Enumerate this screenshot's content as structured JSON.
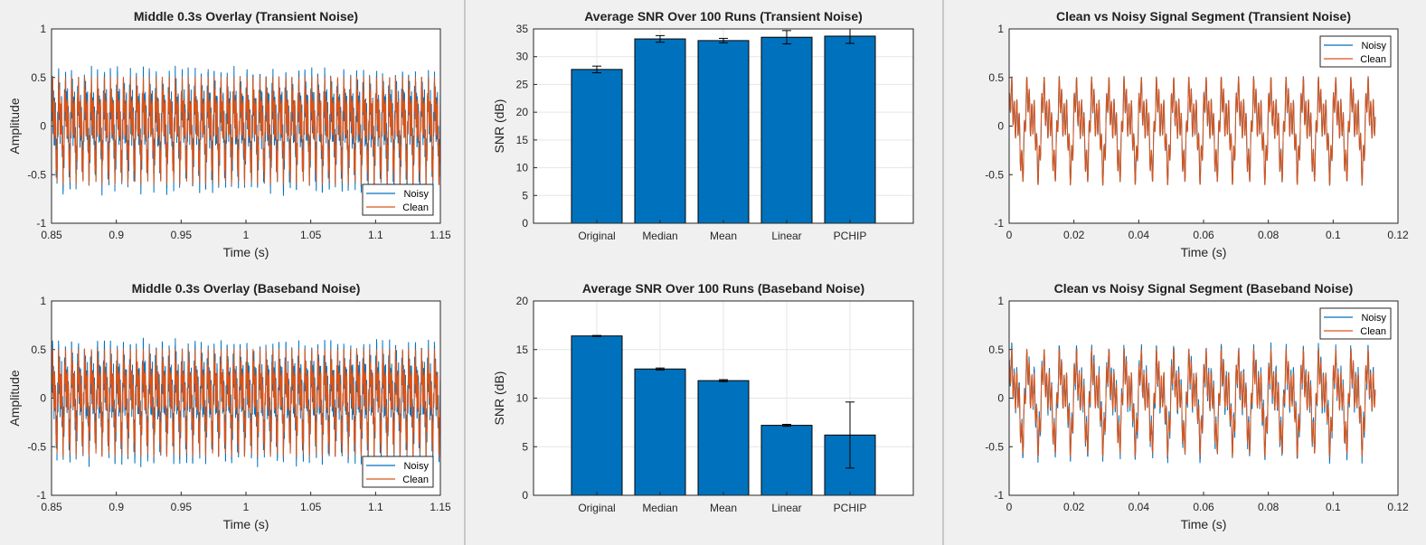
{
  "colors": {
    "noisy": "#0072BD",
    "clean": "#D95319",
    "bar": "#0072BD",
    "grid": "#e6e6e6",
    "axis": "#262626",
    "panel_bg": "#f0f0f0"
  },
  "chart_data": [
    {
      "type": "line",
      "id": "ov-t",
      "title": "Middle 0.3s Overlay (Transient Noise)",
      "xlabel": "Time (s)",
      "ylabel": "Amplitude",
      "xlim": [
        0.85,
        1.15
      ],
      "ylim": [
        -1,
        1
      ],
      "xticks": [
        0.85,
        0.9,
        0.95,
        1,
        1.05,
        1.1,
        1.15
      ],
      "xticklabels": [
        "0.85",
        "0.9",
        "0.95",
        "1",
        "1.05",
        "1.1",
        "1.15"
      ],
      "yticks": [
        -1,
        -0.5,
        0,
        0.5,
        1
      ],
      "yticklabels": [
        "-1",
        "-0.5",
        "0",
        "0.5",
        "1"
      ],
      "grid": false,
      "legend": "lower-right",
      "series": [
        {
          "name": "Noisy",
          "color": "#0072BD",
          "noise_amplitude": 0.12,
          "seed": 11
        },
        {
          "name": "Clean",
          "color": "#D95319",
          "noise_amplitude": 0.0,
          "seed": 12
        }
      ]
    },
    {
      "type": "bar",
      "id": "bar-t",
      "title": "Average SNR Over 100 Runs (Transient Noise)",
      "xlabel": "",
      "ylabel": "SNR (dB)",
      "categories": [
        "Original",
        "Median",
        "Mean",
        "Linear",
        "PCHIP"
      ],
      "values": [
        27.7,
        33.2,
        32.9,
        33.5,
        33.7
      ],
      "errors": [
        0.6,
        0.6,
        0.4,
        1.2,
        1.3
      ],
      "ylim": [
        0,
        35
      ],
      "yticks": [
        0,
        5,
        10,
        15,
        20,
        25,
        30,
        35
      ],
      "yticklabels": [
        "0",
        "5",
        "10",
        "15",
        "20",
        "25",
        "30",
        "35"
      ],
      "grid": true
    },
    {
      "type": "line",
      "id": "seg-t",
      "title": "Clean vs Noisy Signal Segment (Transient Noise)",
      "xlabel": "Time (s)",
      "ylabel": "",
      "xlim": [
        0,
        0.12
      ],
      "ylim": [
        -1,
        1
      ],
      "xticks": [
        0,
        0.02,
        0.04,
        0.06,
        0.08,
        0.1,
        0.12
      ],
      "xticklabels": [
        "0",
        "0.02",
        "0.04",
        "0.06",
        "0.08",
        "0.1",
        "0.12"
      ],
      "yticks": [
        -1,
        -0.5,
        0,
        0.5,
        1
      ],
      "yticklabels": [
        "-1",
        "-0.5",
        "0",
        "0.5",
        "1"
      ],
      "data_xmax": 0.113,
      "grid": false,
      "legend": "top-right",
      "series": [
        {
          "name": "Noisy",
          "color": "#0072BD",
          "noise_amplitude": 0.01,
          "seed": 21
        },
        {
          "name": "Clean",
          "color": "#D95319",
          "noise_amplitude": 0.0,
          "seed": 22
        }
      ]
    },
    {
      "type": "line",
      "id": "ov-b",
      "title": "Middle 0.3s Overlay (Baseband Noise)",
      "xlabel": "Time (s)",
      "ylabel": "Amplitude",
      "xlim": [
        0.85,
        1.15
      ],
      "ylim": [
        -1,
        1
      ],
      "xticks": [
        0.85,
        0.9,
        0.95,
        1,
        1.05,
        1.1,
        1.15
      ],
      "xticklabels": [
        "0.85",
        "0.9",
        "0.95",
        "1",
        "1.05",
        "1.1",
        "1.15"
      ],
      "yticks": [
        -1,
        -0.5,
        0,
        0.5,
        1
      ],
      "yticklabels": [
        "-1",
        "-0.5",
        "0",
        "0.5",
        "1"
      ],
      "grid": false,
      "legend": "lower-right",
      "series": [
        {
          "name": "Noisy",
          "color": "#0072BD",
          "noise_amplitude": 0.12,
          "seed": 31
        },
        {
          "name": "Clean",
          "color": "#D95319",
          "noise_amplitude": 0.0,
          "seed": 32
        }
      ]
    },
    {
      "type": "bar",
      "id": "bar-b",
      "title": "Average SNR Over 100 Runs (Baseband Noise)",
      "xlabel": "",
      "ylabel": "SNR (dB)",
      "categories": [
        "Original",
        "Median",
        "Mean",
        "Linear",
        "PCHIP"
      ],
      "values": [
        16.4,
        13.0,
        11.8,
        7.2,
        6.2
      ],
      "errors": [
        0.05,
        0.1,
        0.1,
        0.1,
        3.4
      ],
      "ylim": [
        0,
        20
      ],
      "yticks": [
        0,
        5,
        10,
        15,
        20
      ],
      "yticklabels": [
        "0",
        "5",
        "10",
        "15",
        "20"
      ],
      "grid": true
    },
    {
      "type": "line",
      "id": "seg-b",
      "title": "Clean vs Noisy Signal Segment (Baseband Noise)",
      "xlabel": "Time (s)",
      "ylabel": "",
      "xlim": [
        0,
        0.12
      ],
      "ylim": [
        -1,
        1
      ],
      "xticks": [
        0,
        0.02,
        0.04,
        0.06,
        0.08,
        0.1,
        0.12
      ],
      "xticklabels": [
        "0",
        "0.02",
        "0.04",
        "0.06",
        "0.08",
        "0.1",
        "0.12"
      ],
      "yticks": [
        -1,
        -0.5,
        0,
        0.5,
        1
      ],
      "yticklabels": [
        "-1",
        "-0.5",
        "0",
        "0.5",
        "1"
      ],
      "data_xmax": 0.113,
      "grid": false,
      "legend": "top-right",
      "series": [
        {
          "name": "Noisy",
          "color": "#0072BD",
          "noise_amplitude": 0.07,
          "seed": 41
        },
        {
          "name": "Clean",
          "color": "#D95319",
          "noise_amplitude": 0.0,
          "seed": 42
        }
      ]
    }
  ]
}
